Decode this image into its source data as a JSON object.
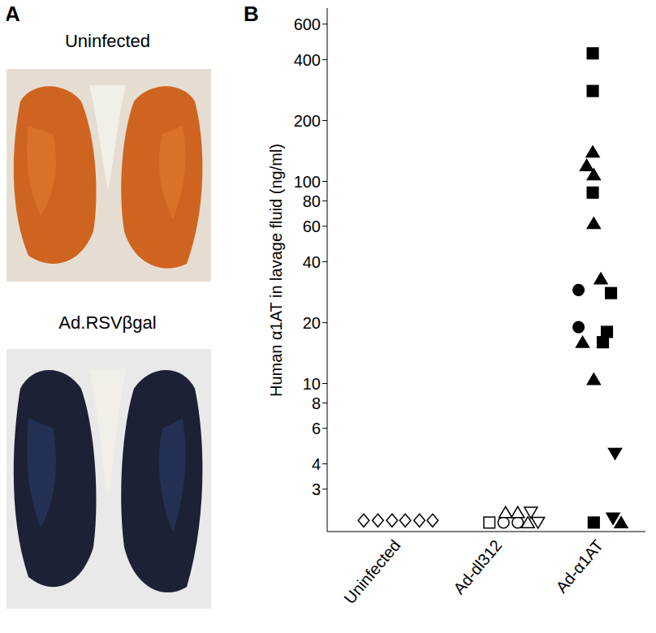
{
  "panel_a": {
    "label": "A",
    "images": [
      {
        "caption": "Uninfected"
      },
      {
        "caption": "Ad.RSVβgal"
      }
    ]
  },
  "chart_data": {
    "panel_label": "B",
    "type": "scatter",
    "y_label": "Human α1AT in lavage fluid (ng/ml)",
    "log": "y",
    "grid": false,
    "xlim": [
      -0.7,
      2.44
    ],
    "xticks": [
      {
        "value": 0,
        "label": "Uninfected"
      },
      {
        "value": 1,
        "label": "Ad-dl312"
      },
      {
        "value": 2,
        "label": "Ad-α1AT"
      }
    ],
    "ylim": [
      1.85,
      720
    ],
    "yticks": [
      3,
      4,
      6,
      8,
      10,
      20,
      40,
      60,
      80,
      100,
      200,
      400,
      600
    ],
    "series": [
      {
        "marker": "open-diamond",
        "color": "#000000",
        "x": [
          -0.34,
          -0.2,
          -0.06,
          0.07,
          0.21,
          0.34
        ],
        "values": [
          2.1,
          2.1,
          2.1,
          2.1,
          2.1,
          2.1
        ]
      },
      {
        "marker": "open-square",
        "color": "#000000",
        "x": [
          0.9
        ],
        "values": [
          2.05
        ]
      },
      {
        "marker": "open-circle",
        "color": "#000000",
        "x": [
          1.04,
          1.18
        ],
        "values": [
          2.05,
          2.05
        ]
      },
      {
        "marker": "open-triangle",
        "color": "#000000",
        "x": [
          1.06,
          1.18,
          1.28
        ],
        "values": [
          2.3,
          2.3,
          2.05
        ]
      },
      {
        "marker": "open-inverted-triangle",
        "color": "#000000",
        "x": [
          1.31,
          1.38
        ],
        "values": [
          2.3,
          2.05
        ]
      },
      {
        "marker": "filled-square",
        "color": "#000000",
        "x": [
          1.92,
          1.92,
          1.92,
          2.1,
          2.06,
          2.02,
          1.93
        ],
        "values": [
          430,
          280,
          88,
          28,
          18,
          16,
          2.05
        ]
      },
      {
        "marker": "filled-triangle",
        "color": "#000000",
        "x": [
          1.92,
          1.86,
          1.93,
          1.93,
          2.0,
          1.82,
          1.93,
          2.2
        ],
        "values": [
          140,
          120,
          108,
          62,
          33,
          16,
          10.5,
          2.05
        ]
      },
      {
        "marker": "filled-circle",
        "color": "#000000",
        "x": [
          1.78,
          1.78
        ],
        "values": [
          29,
          19
        ]
      },
      {
        "marker": "filled-inverted-triangle",
        "color": "#000000",
        "x": [
          2.14,
          2.12
        ],
        "values": [
          4.5,
          2.15
        ]
      }
    ]
  }
}
